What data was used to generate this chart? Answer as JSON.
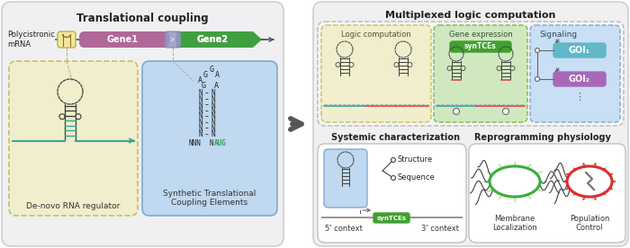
{
  "bg_color": "#ffffff",
  "left_panel_fc": "#f0f0f0",
  "left_panel_ec": "#cccccc",
  "yellow_fc": "#f0eecc",
  "yellow_ec": "#c8c060",
  "blue_fc": "#c0d8f0",
  "blue_ec": "#80aad0",
  "green_fc": "#d0e8c0",
  "green_ec": "#80b840",
  "sig_fc": "#c8dff5",
  "sig_ec": "#80a8d0",
  "title_left": "Translational coupling",
  "title_right": "Multiplexed logic computation",
  "gene1_color": "#b06898",
  "gene2_color": "#40a040",
  "junction_fc": "#9898c8",
  "teal": "#38a898",
  "dark": "#383838",
  "red_line": "#e04848",
  "goi1_fc": "#60b8c8",
  "goi2_fc": "#a868b8",
  "syntce_fc": "#40a030",
  "labels": {
    "polycis": "Polycistronic\nmRNA",
    "gene1": "Gene1",
    "gene2": "Gene2",
    "denovo": "De-novo RNA regulator",
    "synthetic": "Synthetic Translational\nCoupling Elements",
    "logic": "Logic computation",
    "gene_expr": "Gene expression",
    "syntces": "synTCEs",
    "signaling": "Signaling",
    "goi1": "GOI₁",
    "goi2": "GOI₂",
    "dots": "⋮",
    "systemic": "Systemic characterization",
    "reprog": "Reprogramming physiology",
    "structure": "Structure",
    "sequence": "Sequence",
    "five_p": "5' context",
    "three_p": "3' context",
    "syntces2": "synTCEs",
    "membrane": "Membrane\nLocalization",
    "population": "Population\nControl"
  }
}
